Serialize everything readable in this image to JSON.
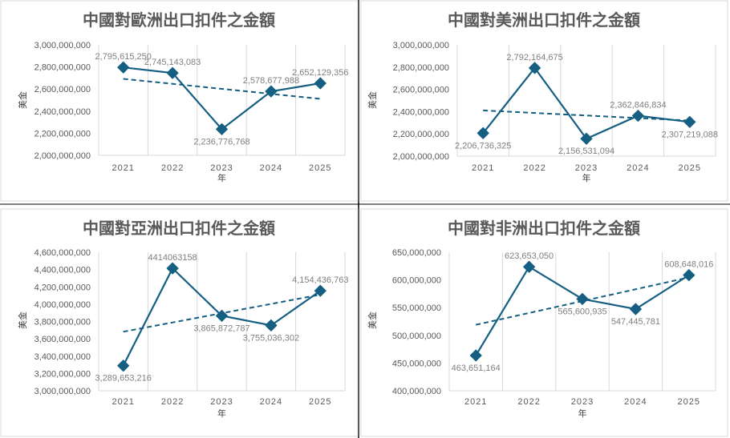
{
  "colors": {
    "series": "#155f82",
    "grid": "#d9d9d9",
    "text": "#595959",
    "label": "#7f7f7f"
  },
  "chart_data": [
    {
      "type": "line",
      "title": "中國對歐洲出口扣件之金額",
      "xlabel": "年",
      "ylabel": "美金",
      "categories": [
        "2021",
        "2022",
        "2023",
        "2024",
        "2025"
      ],
      "values": [
        2795615250,
        2745143083,
        2236776768,
        2578677988,
        2652129356
      ],
      "data_labels": [
        "2,795,615,250",
        "2,745,143,083",
        "2,236,776,768",
        "2,578,677,988",
        "2,652,129,356"
      ],
      "ylim": [
        2000000000,
        3000000000
      ],
      "yticks": [
        "2,000,000,000",
        "2,200,000,000",
        "2,400,000,000",
        "2,600,000,000",
        "2,800,000,000",
        "3,000,000,000"
      ],
      "trendline": "linear",
      "grid": "vertical"
    },
    {
      "type": "line",
      "title": "中國對美洲出口扣件之金額",
      "xlabel": "年",
      "ylabel": "美金",
      "categories": [
        "2021",
        "2022",
        "2023",
        "2024",
        "2025"
      ],
      "values": [
        2206736325,
        2792164675,
        2156531094,
        2362846834,
        2307219088
      ],
      "data_labels": [
        "2,206,736,325",
        "2,792,164,675",
        "2,156,531,094",
        "2,362,846,834",
        "2,307,219,088"
      ],
      "ylim": [
        2000000000,
        3000000000
      ],
      "yticks": [
        "2,000,000,000",
        "2,200,000,000",
        "2,400,000,000",
        "2,600,000,000",
        "2,800,000,000",
        "3,000,000,000"
      ],
      "trendline": "linear",
      "grid": "vertical"
    },
    {
      "type": "line",
      "title": "中國對亞洲出口扣件之金額",
      "xlabel": "年",
      "ylabel": "美金",
      "categories": [
        "2021",
        "2022",
        "2023",
        "2024",
        "2025"
      ],
      "values": [
        3289653216,
        4414063158,
        3865872787,
        3755036302,
        4154436763
      ],
      "data_labels": [
        "3,289,653,216",
        "4414063158",
        "3,865,872,787",
        "3,755,036,302",
        "4,154,436,763"
      ],
      "ylim": [
        3000000000,
        4600000000
      ],
      "yticks": [
        "3,000,000,000",
        "3,200,000,000",
        "3,400,000,000",
        "3,600,000,000",
        "3,800,000,000",
        "4,000,000,000",
        "4,200,000,000",
        "4,400,000,000",
        "4,600,000,000"
      ],
      "trendline": "linear",
      "grid": "vertical"
    },
    {
      "type": "line",
      "title": "中國對非洲出口扣件之金額",
      "xlabel": "年",
      "ylabel": "美金",
      "categories": [
        "2021",
        "2022",
        "2023",
        "2024",
        "2025"
      ],
      "values": [
        463651164,
        623653050,
        565600935,
        547445781,
        608648016
      ],
      "data_labels": [
        "463,651,164",
        "623,653,050",
        "565,600,935",
        "547,445,781",
        "608,648,016"
      ],
      "ylim": [
        400000000,
        650000000
      ],
      "yticks": [
        "400,000,000",
        "450,000,000",
        "500,000,000",
        "550,000,000",
        "600,000,000",
        "650,000,000"
      ],
      "trendline": "linear",
      "grid": "vertical"
    }
  ]
}
